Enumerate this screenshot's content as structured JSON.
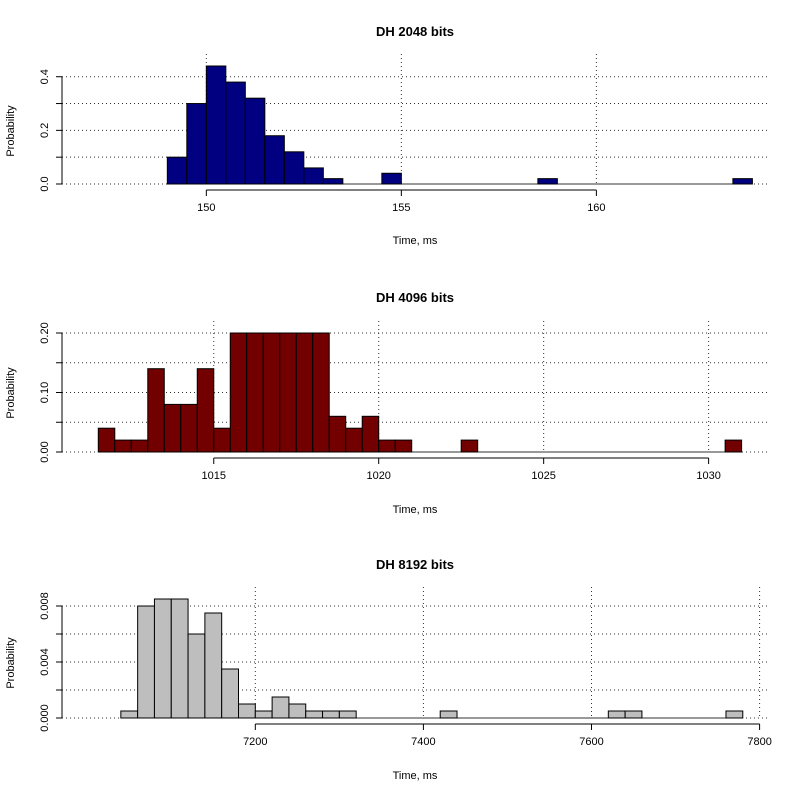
{
  "chart_data": [
    {
      "type": "bar",
      "subtype": "histogram",
      "title": "DH 2048 bits",
      "xlabel": "Time, ms",
      "ylabel": "Probability",
      "color": "#000080",
      "bin_width": 0.5,
      "bin_start": 149.0,
      "values": [
        0.1,
        0.3,
        0.44,
        0.38,
        0.32,
        0.18,
        0.12,
        0.06,
        0.02,
        0,
        0,
        0.04,
        0,
        0,
        0,
        0,
        0,
        0,
        0,
        0.02,
        0,
        0,
        0,
        0,
        0,
        0,
        0,
        0,
        0,
        0.02
      ],
      "xlim": [
        146.3,
        164.4
      ],
      "ylim": [
        0,
        0.44
      ],
      "xticks": [
        150,
        155,
        160
      ],
      "xtick_labels": [
        "150",
        "155",
        "160"
      ],
      "yticks": [
        0,
        0.1,
        0.2,
        0.3,
        0.4
      ],
      "ytick_labels": [
        "0.0",
        "",
        "0.2",
        "",
        "0.4"
      ],
      "grid_x": [
        150,
        155,
        160
      ],
      "grid_y": [
        0,
        0.1,
        0.2,
        0.3,
        0.4
      ],
      "grid": true
    },
    {
      "type": "bar",
      "subtype": "histogram",
      "title": "DH 4096 bits",
      "xlabel": "Time, ms",
      "ylabel": "Probability",
      "color": "#730000",
      "bin_width": 0.5,
      "bin_start": 1011.5,
      "values": [
        0.04,
        0.02,
        0.02,
        0.14,
        0.08,
        0.08,
        0.14,
        0.04,
        0.2,
        0.2,
        0.2,
        0.2,
        0.2,
        0.2,
        0.06,
        0.04,
        0.06,
        0.02,
        0.02,
        0,
        0,
        0,
        0.02,
        0,
        0,
        0,
        0,
        0,
        0,
        0,
        0,
        0,
        0,
        0,
        0,
        0,
        0,
        0,
        0.02
      ],
      "xlim": [
        1010.4,
        1031.8
      ],
      "ylim": [
        0,
        0.2
      ],
      "xticks": [
        1015,
        1020,
        1025,
        1030
      ],
      "xtick_labels": [
        "1015",
        "1020",
        "1025",
        "1030"
      ],
      "yticks": [
        0,
        0.05,
        0.1,
        0.15,
        0.2
      ],
      "ytick_labels": [
        "0.00",
        "",
        "0.10",
        "",
        "0.20"
      ],
      "grid_x": [
        1015,
        1020,
        1025,
        1030
      ],
      "grid_y": [
        0,
        0.05,
        0.1,
        0.15,
        0.2
      ],
      "grid": true
    },
    {
      "type": "bar",
      "subtype": "histogram",
      "title": "DH 8192 bits",
      "xlabel": "Time, ms",
      "ylabel": "Probability",
      "color": "#bebebe",
      "bin_width": 20,
      "bin_start": 7040,
      "values": [
        0.0005,
        0.008,
        0.0085,
        0.0085,
        0.006,
        0.0075,
        0.0035,
        0.001,
        0.0005,
        0.0015,
        0.001,
        0.0005,
        0.0005,
        0.0005,
        0,
        0,
        0,
        0,
        0,
        0.0005,
        0,
        0,
        0,
        0,
        0,
        0,
        0,
        0,
        0,
        0.0005,
        0.0005,
        0,
        0,
        0,
        0,
        0,
        0.0005
      ],
      "xlim": [
        6970,
        7810
      ],
      "ylim": [
        0,
        0.0085
      ],
      "xticks": [
        7200,
        7400,
        7600,
        7800
      ],
      "xtick_labels": [
        "7200",
        "7400",
        "7600",
        "7800"
      ],
      "yticks": [
        0,
        0.002,
        0.004,
        0.006,
        0.008
      ],
      "ytick_labels": [
        "0.000",
        "",
        "0.004",
        "",
        "0.008"
      ],
      "grid_x": [
        7200,
        7400,
        7600,
        7800
      ],
      "grid_y": [
        0,
        0.002,
        0.004,
        0.006,
        0.008
      ],
      "grid": true
    }
  ]
}
